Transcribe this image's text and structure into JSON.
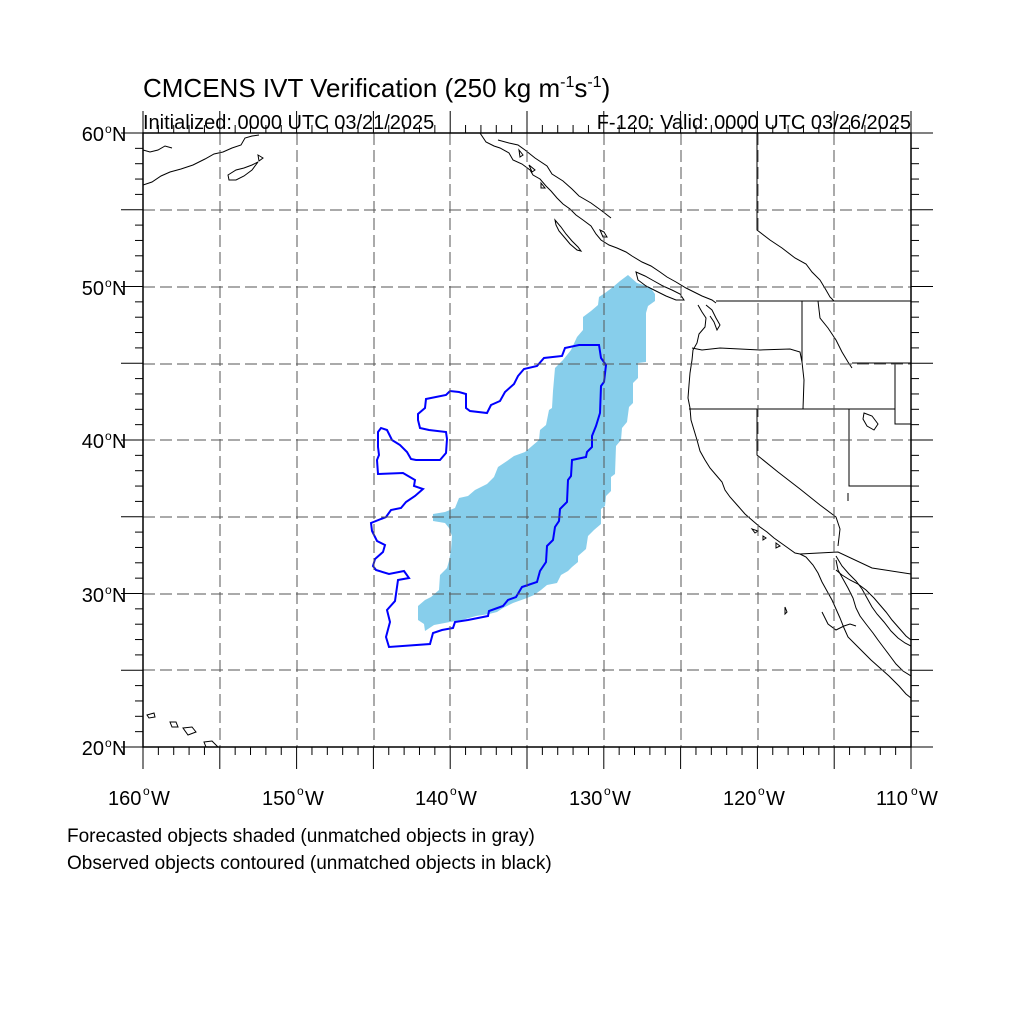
{
  "title": {
    "main": "CMCENS IVT Verification (250 kg m",
    "exp1": "-1",
    "s": "s",
    "exp2": "-1",
    "close": ")"
  },
  "init_label": "Initialized: 0000 UTC 03/21/2025",
  "valid_label": "F-120: Valid: 0000 UTC 03/26/2025",
  "lat_labels": [
    "60",
    "50",
    "40",
    "30",
    "20"
  ],
  "lat_suffix": "N",
  "lon_labels": [
    "160",
    "150",
    "140",
    "130",
    "120",
    "110"
  ],
  "lon_suffix": "W",
  "degree_symbol": "o",
  "notes": {
    "forecast": "Forecasted objects shaded (unmatched objects in gray)",
    "observed": "Observed objects contoured (unmatched objects in black)"
  },
  "map_extent": {
    "lon_min": -160,
    "lon_max": -110,
    "lat_min": 20,
    "lat_max": 60
  },
  "colors": {
    "forecast_fill": "#87ceeb",
    "observed_contour": "#0000ff",
    "coast": "#000000"
  }
}
